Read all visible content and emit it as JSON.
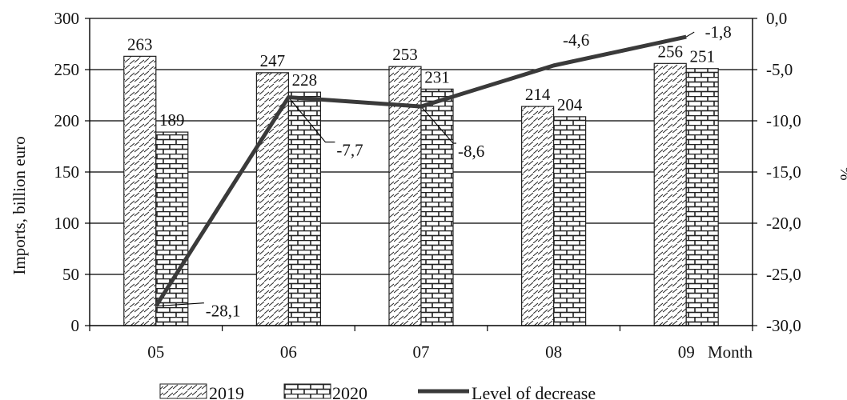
{
  "chart_data": {
    "type": "bar+line",
    "categories": [
      "05",
      "06",
      "07",
      "08",
      "09"
    ],
    "x_axis_label": "Month",
    "y_left": {
      "label": "Imports, billion euro",
      "ylim": [
        0,
        300
      ],
      "ticks": [
        "0",
        "50",
        "100",
        "150",
        "200",
        "250",
        "300"
      ]
    },
    "y_right": {
      "label": "%",
      "ylim": [
        -30,
        0
      ],
      "ticks": [
        "-30,0",
        "-25,0",
        "-20,0",
        "-15,0",
        "-10,0",
        "-5,0",
        "0,0"
      ]
    },
    "series": [
      {
        "name": "2019",
        "kind": "bar",
        "pattern": "diagonal-dashes",
        "values": [
          263,
          247,
          253,
          214,
          256
        ],
        "labels": [
          "263",
          "247",
          "253",
          "214",
          "256"
        ]
      },
      {
        "name": "2020",
        "kind": "bar",
        "pattern": "brick",
        "values": [
          189,
          228,
          231,
          204,
          251
        ],
        "labels": [
          "189",
          "228",
          "231",
          "204",
          "251"
        ]
      },
      {
        "name": "Level of decrease",
        "kind": "line",
        "axis": "right",
        "color": "#3a3a3a",
        "values": [
          -28.1,
          -7.7,
          -8.6,
          -4.6,
          -1.8
        ],
        "labels": [
          "-28,1",
          "-7,7",
          "-8,6",
          "-4,6",
          "-1,8"
        ]
      }
    ],
    "legend_position": "bottom",
    "grid": "horizontal"
  }
}
